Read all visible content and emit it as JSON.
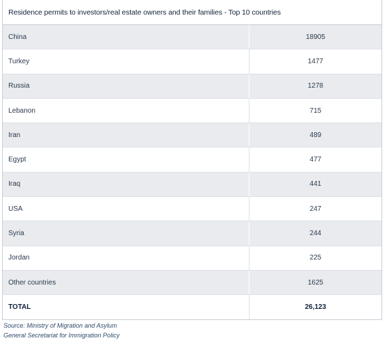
{
  "title": "Residence permits to investors/real estate owners and their families - Top 10 countries",
  "rows": [
    {
      "country": "China",
      "value": "18905"
    },
    {
      "country": "Turkey",
      "value": "1477"
    },
    {
      "country": "Russia",
      "value": "1278"
    },
    {
      "country": "Lebanon",
      "value": "715"
    },
    {
      "country": "Iran",
      "value": "489"
    },
    {
      "country": "Egypt",
      "value": "477"
    },
    {
      "country": "Iraq",
      "value": "441"
    },
    {
      "country": "USA",
      "value": "247"
    },
    {
      "country": "Syria",
      "value": "244"
    },
    {
      "country": "Jordan",
      "value": "225"
    },
    {
      "country": "Other countries",
      "value": "1625"
    }
  ],
  "total": {
    "label": "TOTAL",
    "value": "26,123"
  },
  "source": {
    "line1": "Source: Ministry of Migration and Asylum",
    "line2": "General Secretariat for Immigration Policy"
  },
  "colors": {
    "shaded_row": "#e9ebee",
    "border": "#c9cfd6",
    "text": "#2b3a4d",
    "source_text": "#2f4a6b"
  }
}
